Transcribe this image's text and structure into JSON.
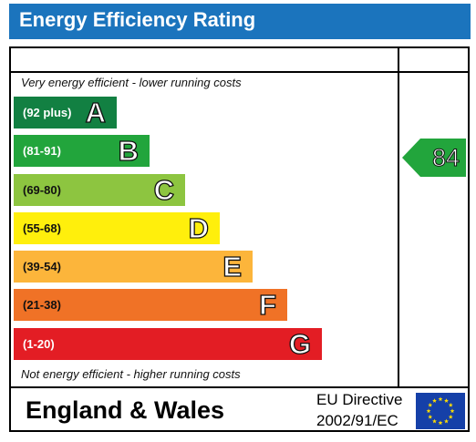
{
  "title": "Energy Efficiency Rating",
  "top_note": "Very energy efficient - lower running costs",
  "bottom_note": "Not energy efficient - higher running costs",
  "bands": [
    {
      "range": "(92 plus)",
      "letter": "A",
      "color": "#128042",
      "range_color": "#ffffff"
    },
    {
      "range": "(81-91)",
      "letter": "B",
      "color": "#22a53c",
      "range_color": "#ffffff"
    },
    {
      "range": "(69-80)",
      "letter": "C",
      "color": "#8dc540",
      "range_color": "#111111"
    },
    {
      "range": "(55-68)",
      "letter": "D",
      "color": "#ffef0c",
      "range_color": "#111111"
    },
    {
      "range": "(39-54)",
      "letter": "E",
      "color": "#fcb53b",
      "range_color": "#111111"
    },
    {
      "range": "(21-38)",
      "letter": "F",
      "color": "#f07226",
      "range_color": "#111111"
    },
    {
      "range": "(1-20)",
      "letter": "G",
      "color": "#e31d24",
      "range_color": "#ffffff"
    }
  ],
  "current_rating": {
    "value": "84",
    "color": "#22a53c"
  },
  "footer": {
    "region": "England & Wales",
    "directive_line1": "EU Directive",
    "directive_line2": "2002/91/EC"
  },
  "flag": {
    "color": "#1540a8",
    "star_color": "#ffdd00"
  }
}
